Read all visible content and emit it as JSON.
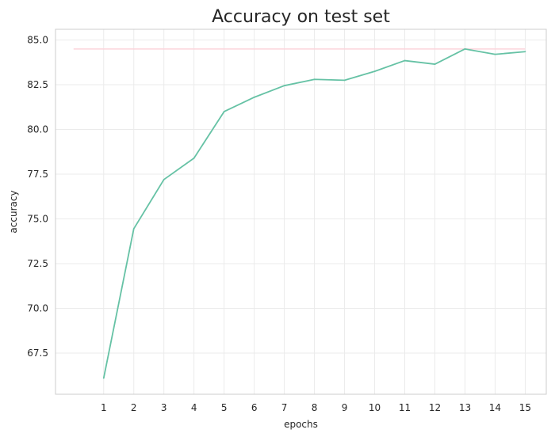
{
  "chart_data": {
    "type": "line",
    "title": "Accuracy on test set",
    "xlabel": "epochs",
    "ylabel": "accuracy",
    "x": [
      1,
      2,
      3,
      4,
      5,
      6,
      7,
      8,
      9,
      10,
      11,
      12,
      13,
      14,
      15
    ],
    "x_tick_labels": [
      "1",
      "2",
      "3",
      "4",
      "5",
      "6",
      "7",
      "8",
      "9",
      "10",
      "11",
      "12",
      "13",
      "14",
      "15"
    ],
    "y_tick_values": [
      67.5,
      70.0,
      72.5,
      75.0,
      77.5,
      80.0,
      82.5,
      85.0
    ],
    "y_tick_labels": [
      "67.5",
      "70.0",
      "72.5",
      "75.0",
      "77.5",
      "80.0",
      "82.5",
      "85.0"
    ],
    "xlim": [
      -0.6,
      15.7
    ],
    "ylim": [
      65.2,
      85.6
    ],
    "grid": true,
    "series": [
      {
        "color": "#66c2a5",
        "values": [
          66.1,
          74.45,
          77.2,
          78.4,
          81.0,
          81.8,
          82.45,
          82.8,
          82.75,
          83.25,
          83.85,
          83.65,
          84.5,
          84.2,
          84.35
        ]
      }
    ],
    "reference_line": {
      "y": 84.5,
      "x_range": [
        0,
        15
      ],
      "color": "#fcd4dc"
    }
  }
}
